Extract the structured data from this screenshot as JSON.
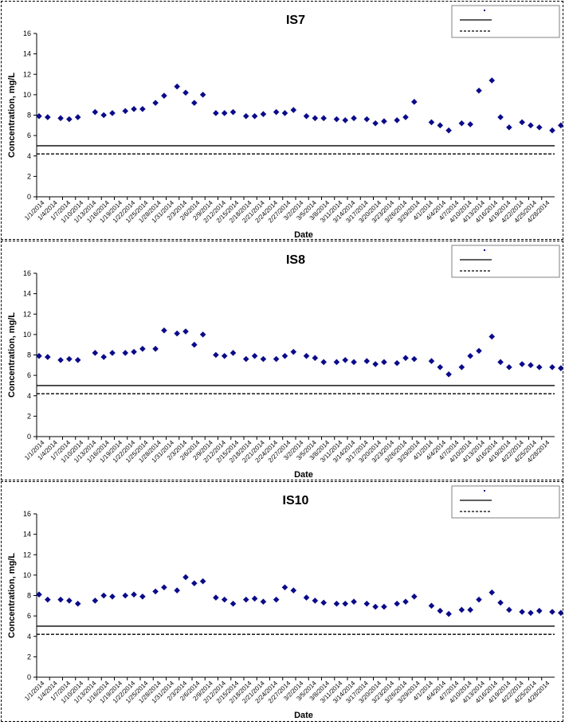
{
  "chart_data": [
    {
      "type": "scatter",
      "title": "IS7",
      "xlabel": "Date",
      "ylabel": "Concentration, mg/L",
      "ylim": [
        0,
        16
      ],
      "yticks": [
        0,
        2,
        4,
        6,
        8,
        10,
        12,
        14,
        16
      ],
      "xlim": [
        "1/1/2014",
        "4/30/2014"
      ],
      "xtick_labels": [
        "1/1/2014",
        "1/4/2014",
        "1/7/2014",
        "1/10/2014",
        "1/13/2014",
        "1/16/2014",
        "1/19/2014",
        "1/22/2014",
        "1/25/2014",
        "1/28/2014",
        "1/31/2014",
        "2/3/2014",
        "2/6/2014",
        "2/9/2014",
        "2/12/2014",
        "2/15/2014",
        "2/18/2014",
        "2/21/2014",
        "2/24/2014",
        "2/27/2014",
        "3/2/2014",
        "3/5/2014",
        "3/8/2014",
        "3/11/2014",
        "3/14/2014",
        "3/17/2014",
        "3/20/2014",
        "3/23/2014",
        "3/26/2014",
        "3/29/2014",
        "4/1/2014",
        "4/4/2014",
        "4/7/2014",
        "4/10/2014",
        "4/13/2014",
        "4/16/2014",
        "4/19/2014",
        "4/22/2014",
        "4/25/2014",
        "4/28/2014"
      ],
      "grid": false,
      "legend": "top-right",
      "points": [
        {
          "x": "1/1/2014",
          "y": 7.9
        },
        {
          "x": "1/3/2014",
          "y": 7.8
        },
        {
          "x": "1/6/2014",
          "y": 7.7
        },
        {
          "x": "1/8/2014",
          "y": 7.6
        },
        {
          "x": "1/10/2014",
          "y": 7.8
        },
        {
          "x": "1/14/2014",
          "y": 8.3
        },
        {
          "x": "1/16/2014",
          "y": 8.0
        },
        {
          "x": "1/18/2014",
          "y": 8.2
        },
        {
          "x": "1/21/2014",
          "y": 8.4
        },
        {
          "x": "1/23/2014",
          "y": 8.6
        },
        {
          "x": "1/25/2014",
          "y": 8.6
        },
        {
          "x": "1/28/2014",
          "y": 9.2
        },
        {
          "x": "1/30/2014",
          "y": 9.9
        },
        {
          "x": "2/2/2014",
          "y": 10.8
        },
        {
          "x": "2/4/2014",
          "y": 10.2
        },
        {
          "x": "2/6/2014",
          "y": 9.2
        },
        {
          "x": "2/8/2014",
          "y": 10.0
        },
        {
          "x": "2/11/2014",
          "y": 8.2
        },
        {
          "x": "2/13/2014",
          "y": 8.2
        },
        {
          "x": "2/15/2014",
          "y": 8.3
        },
        {
          "x": "2/18/2014",
          "y": 7.9
        },
        {
          "x": "2/20/2014",
          "y": 7.9
        },
        {
          "x": "2/22/2014",
          "y": 8.1
        },
        {
          "x": "2/25/2014",
          "y": 8.3
        },
        {
          "x": "2/27/2014",
          "y": 8.2
        },
        {
          "x": "3/1/2014",
          "y": 8.5
        },
        {
          "x": "3/4/2014",
          "y": 7.9
        },
        {
          "x": "3/6/2014",
          "y": 7.7
        },
        {
          "x": "3/8/2014",
          "y": 7.7
        },
        {
          "x": "3/11/2014",
          "y": 7.6
        },
        {
          "x": "3/13/2014",
          "y": 7.5
        },
        {
          "x": "3/15/2014",
          "y": 7.7
        },
        {
          "x": "3/18/2014",
          "y": 7.6
        },
        {
          "x": "3/20/2014",
          "y": 7.2
        },
        {
          "x": "3/22/2014",
          "y": 7.4
        },
        {
          "x": "3/25/2014",
          "y": 7.5
        },
        {
          "x": "3/27/2014",
          "y": 7.8
        },
        {
          "x": "3/29/2014",
          "y": 9.3
        },
        {
          "x": "4/2/2014",
          "y": 7.3
        },
        {
          "x": "4/4/2014",
          "y": 7.0
        },
        {
          "x": "4/6/2014",
          "y": 6.5
        },
        {
          "x": "4/9/2014",
          "y": 7.2
        },
        {
          "x": "4/11/2014",
          "y": 7.1
        },
        {
          "x": "4/13/2014",
          "y": 10.4
        },
        {
          "x": "4/16/2014",
          "y": 11.4
        },
        {
          "x": "4/18/2014",
          "y": 7.8
        },
        {
          "x": "4/20/2014",
          "y": 6.8
        },
        {
          "x": "4/23/2014",
          "y": 7.3
        },
        {
          "x": "4/25/2014",
          "y": 7.0
        },
        {
          "x": "4/27/2014",
          "y": 6.8
        },
        {
          "x": "4/30/2014",
          "y": 6.5
        },
        {
          "x": "5/2/2014",
          "y": 7.0
        }
      ],
      "reference_lines": [
        {
          "style": "solid",
          "y": 5.0
        },
        {
          "style": "dashed",
          "y": 4.2
        }
      ]
    },
    {
      "type": "scatter",
      "title": "IS8",
      "xlabel": "Date",
      "ylabel": "Concentration, mg/L",
      "ylim": [
        0,
        16
      ],
      "yticks": [
        0,
        2,
        4,
        6,
        8,
        10,
        12,
        14,
        16
      ],
      "xlim": [
        "1/1/2014",
        "4/30/2014"
      ],
      "xtick_labels": [
        "1/1/2014",
        "1/4/2014",
        "1/7/2014",
        "1/10/2014",
        "1/13/2014",
        "1/16/2014",
        "1/19/2014",
        "1/22/2014",
        "1/25/2014",
        "1/28/2014",
        "1/31/2014",
        "2/3/2014",
        "2/6/2014",
        "2/9/2014",
        "2/12/2014",
        "2/15/2014",
        "2/18/2014",
        "2/21/2014",
        "2/24/2014",
        "2/27/2014",
        "3/2/2014",
        "3/5/2014",
        "3/8/2014",
        "3/11/2014",
        "3/14/2014",
        "3/17/2014",
        "3/20/2014",
        "3/23/2014",
        "3/26/2014",
        "3/29/2014",
        "4/1/2014",
        "4/4/2014",
        "4/7/2014",
        "4/10/2014",
        "4/13/2014",
        "4/16/2014",
        "4/19/2014",
        "4/22/2014",
        "4/25/2014",
        "4/28/2014"
      ],
      "grid": false,
      "legend": "top-right",
      "points": [
        {
          "x": "1/1/2014",
          "y": 7.9
        },
        {
          "x": "1/3/2014",
          "y": 7.8
        },
        {
          "x": "1/6/2014",
          "y": 7.5
        },
        {
          "x": "1/8/2014",
          "y": 7.6
        },
        {
          "x": "1/10/2014",
          "y": 7.5
        },
        {
          "x": "1/14/2014",
          "y": 8.2
        },
        {
          "x": "1/16/2014",
          "y": 7.8
        },
        {
          "x": "1/18/2014",
          "y": 8.2
        },
        {
          "x": "1/21/2014",
          "y": 8.2
        },
        {
          "x": "1/23/2014",
          "y": 8.3
        },
        {
          "x": "1/25/2014",
          "y": 8.6
        },
        {
          "x": "1/28/2014",
          "y": 8.6
        },
        {
          "x": "1/30/2014",
          "y": 10.4
        },
        {
          "x": "2/2/2014",
          "y": 10.1
        },
        {
          "x": "2/4/2014",
          "y": 10.3
        },
        {
          "x": "2/6/2014",
          "y": 9.0
        },
        {
          "x": "2/8/2014",
          "y": 10.0
        },
        {
          "x": "2/11/2014",
          "y": 8.0
        },
        {
          "x": "2/13/2014",
          "y": 7.9
        },
        {
          "x": "2/15/2014",
          "y": 8.2
        },
        {
          "x": "2/18/2014",
          "y": 7.6
        },
        {
          "x": "2/20/2014",
          "y": 7.9
        },
        {
          "x": "2/22/2014",
          "y": 7.6
        },
        {
          "x": "2/25/2014",
          "y": 7.6
        },
        {
          "x": "2/27/2014",
          "y": 7.9
        },
        {
          "x": "3/1/2014",
          "y": 8.3
        },
        {
          "x": "3/4/2014",
          "y": 7.9
        },
        {
          "x": "3/6/2014",
          "y": 7.7
        },
        {
          "x": "3/8/2014",
          "y": 7.3
        },
        {
          "x": "3/11/2014",
          "y": 7.3
        },
        {
          "x": "3/13/2014",
          "y": 7.5
        },
        {
          "x": "3/15/2014",
          "y": 7.3
        },
        {
          "x": "3/18/2014",
          "y": 7.4
        },
        {
          "x": "3/20/2014",
          "y": 7.1
        },
        {
          "x": "3/22/2014",
          "y": 7.3
        },
        {
          "x": "3/25/2014",
          "y": 7.2
        },
        {
          "x": "3/27/2014",
          "y": 7.7
        },
        {
          "x": "3/29/2014",
          "y": 7.6
        },
        {
          "x": "4/2/2014",
          "y": 7.4
        },
        {
          "x": "4/4/2014",
          "y": 6.8
        },
        {
          "x": "4/6/2014",
          "y": 6.1
        },
        {
          "x": "4/9/2014",
          "y": 6.8
        },
        {
          "x": "4/11/2014",
          "y": 7.9
        },
        {
          "x": "4/13/2014",
          "y": 8.4
        },
        {
          "x": "4/16/2014",
          "y": 9.8
        },
        {
          "x": "4/18/2014",
          "y": 7.3
        },
        {
          "x": "4/20/2014",
          "y": 6.8
        },
        {
          "x": "4/23/2014",
          "y": 7.1
        },
        {
          "x": "4/25/2014",
          "y": 7.0
        },
        {
          "x": "4/27/2014",
          "y": 6.8
        },
        {
          "x": "4/30/2014",
          "y": 6.8
        },
        {
          "x": "5/2/2014",
          "y": 6.7
        }
      ],
      "reference_lines": [
        {
          "style": "solid",
          "y": 5.0
        },
        {
          "style": "dashed",
          "y": 4.2
        }
      ]
    },
    {
      "type": "scatter",
      "title": "IS10",
      "xlabel": "Date",
      "ylabel": "Concentration, mg/L",
      "ylim": [
        0,
        16
      ],
      "yticks": [
        0,
        2,
        4,
        6,
        8,
        10,
        12,
        14,
        16
      ],
      "xlim": [
        "1/1/2014",
        "4/30/2014"
      ],
      "xtick_labels": [
        "1/1/2014",
        "1/4/2014",
        "1/7/2014",
        "1/10/2014",
        "1/13/2014",
        "1/16/2014",
        "1/19/2014",
        "1/22/2014",
        "1/25/2014",
        "1/28/2014",
        "1/31/2014",
        "2/3/2014",
        "2/6/2014",
        "2/9/2014",
        "2/12/2014",
        "2/15/2014",
        "2/18/2014",
        "2/21/2014",
        "2/24/2014",
        "2/27/2014",
        "3/2/2014",
        "3/5/2014",
        "3/8/2014",
        "3/11/2014",
        "3/14/2014",
        "3/17/2014",
        "3/20/2014",
        "3/23/2014",
        "3/26/2014",
        "3/29/2014",
        "4/1/2014",
        "4/4/2014",
        "4/7/2014",
        "4/10/2014",
        "4/13/2014",
        "4/16/2014",
        "4/19/2014",
        "4/22/2014",
        "4/25/2014",
        "4/28/2014"
      ],
      "grid": false,
      "legend": "top-right",
      "points": [
        {
          "x": "1/1/2014",
          "y": 8.1
        },
        {
          "x": "1/3/2014",
          "y": 7.6
        },
        {
          "x": "1/6/2014",
          "y": 7.6
        },
        {
          "x": "1/8/2014",
          "y": 7.5
        },
        {
          "x": "1/10/2014",
          "y": 7.2
        },
        {
          "x": "1/14/2014",
          "y": 7.5
        },
        {
          "x": "1/16/2014",
          "y": 8.0
        },
        {
          "x": "1/18/2014",
          "y": 7.9
        },
        {
          "x": "1/21/2014",
          "y": 8.0
        },
        {
          "x": "1/23/2014",
          "y": 8.1
        },
        {
          "x": "1/25/2014",
          "y": 7.9
        },
        {
          "x": "1/28/2014",
          "y": 8.4
        },
        {
          "x": "1/30/2014",
          "y": 8.8
        },
        {
          "x": "2/2/2014",
          "y": 8.5
        },
        {
          "x": "2/4/2014",
          "y": 9.8
        },
        {
          "x": "2/6/2014",
          "y": 9.2
        },
        {
          "x": "2/8/2014",
          "y": 9.4
        },
        {
          "x": "2/11/2014",
          "y": 7.8
        },
        {
          "x": "2/13/2014",
          "y": 7.6
        },
        {
          "x": "2/15/2014",
          "y": 7.2
        },
        {
          "x": "2/18/2014",
          "y": 7.6
        },
        {
          "x": "2/20/2014",
          "y": 7.7
        },
        {
          "x": "2/22/2014",
          "y": 7.4
        },
        {
          "x": "2/25/2014",
          "y": 7.6
        },
        {
          "x": "2/27/2014",
          "y": 8.8
        },
        {
          "x": "3/1/2014",
          "y": 8.5
        },
        {
          "x": "3/4/2014",
          "y": 7.8
        },
        {
          "x": "3/6/2014",
          "y": 7.5
        },
        {
          "x": "3/8/2014",
          "y": 7.3
        },
        {
          "x": "3/11/2014",
          "y": 7.2
        },
        {
          "x": "3/13/2014",
          "y": 7.2
        },
        {
          "x": "3/15/2014",
          "y": 7.4
        },
        {
          "x": "3/18/2014",
          "y": 7.2
        },
        {
          "x": "3/20/2014",
          "y": 6.9
        },
        {
          "x": "3/22/2014",
          "y": 6.9
        },
        {
          "x": "3/25/2014",
          "y": 7.2
        },
        {
          "x": "3/27/2014",
          "y": 7.4
        },
        {
          "x": "3/29/2014",
          "y": 7.9
        },
        {
          "x": "4/2/2014",
          "y": 7.0
        },
        {
          "x": "4/4/2014",
          "y": 6.5
        },
        {
          "x": "4/6/2014",
          "y": 6.2
        },
        {
          "x": "4/9/2014",
          "y": 6.6
        },
        {
          "x": "4/11/2014",
          "y": 6.6
        },
        {
          "x": "4/13/2014",
          "y": 7.6
        },
        {
          "x": "4/16/2014",
          "y": 8.3
        },
        {
          "x": "4/18/2014",
          "y": 7.3
        },
        {
          "x": "4/20/2014",
          "y": 6.6
        },
        {
          "x": "4/23/2014",
          "y": 6.4
        },
        {
          "x": "4/25/2014",
          "y": 6.3
        },
        {
          "x": "4/27/2014",
          "y": 6.5
        },
        {
          "x": "4/30/2014",
          "y": 6.4
        },
        {
          "x": "5/2/2014",
          "y": 6.3
        }
      ],
      "reference_lines": [
        {
          "style": "solid",
          "y": 5.0
        },
        {
          "style": "dashed",
          "y": 4.2
        }
      ]
    }
  ],
  "colors": {
    "marker": "#0a0a8a",
    "line": "#000000",
    "frame": "#808080"
  }
}
